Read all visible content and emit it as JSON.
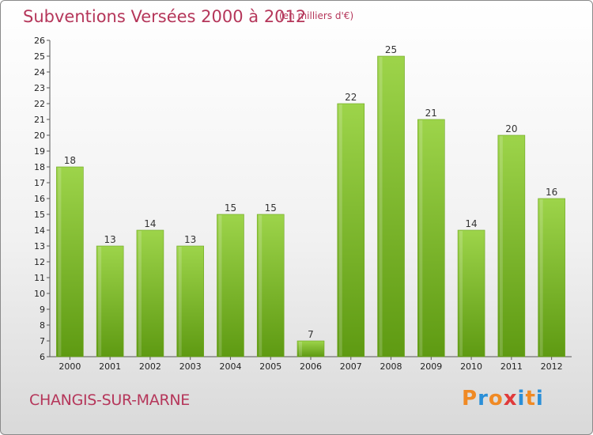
{
  "header": {
    "title": "Subventions Versées 2000 à 2012",
    "unit": "(en milliers d'€)"
  },
  "footer": {
    "commune": "CHANGIS-SUR-MARNE",
    "logo_text": "Proxiti"
  },
  "colors": {
    "title": "#b5365a",
    "bar_top": "#9dd44a",
    "bar_bottom": "#5e9a12",
    "logo_letters": [
      "#f08a24",
      "#2a8fd8",
      "#f08a24",
      "#e03a3a",
      "#2a8fd8",
      "#f08a24",
      "#2a8fd8"
    ]
  },
  "chart_data": {
    "type": "bar",
    "title": "Subventions Versées 2000 à 2012",
    "xlabel": "",
    "ylabel": "",
    "categories": [
      "2000",
      "2001",
      "2002",
      "2003",
      "2004",
      "2005",
      "2006",
      "2007",
      "2008",
      "2009",
      "2010",
      "2011",
      "2012"
    ],
    "values": [
      18,
      13,
      14,
      13,
      15,
      15,
      7,
      22,
      25,
      21,
      14,
      20,
      16
    ],
    "data_labels": [
      "18",
      "13",
      "14",
      "13",
      "15",
      "15",
      "7",
      "22",
      "25",
      "21",
      "14",
      "20",
      "16"
    ],
    "ylim": [
      6,
      26
    ],
    "yticks": [
      6,
      7,
      8,
      9,
      10,
      11,
      12,
      13,
      14,
      15,
      16,
      17,
      18,
      19,
      20,
      21,
      22,
      23,
      24,
      25,
      26
    ],
    "grid": false,
    "legend": "none"
  }
}
